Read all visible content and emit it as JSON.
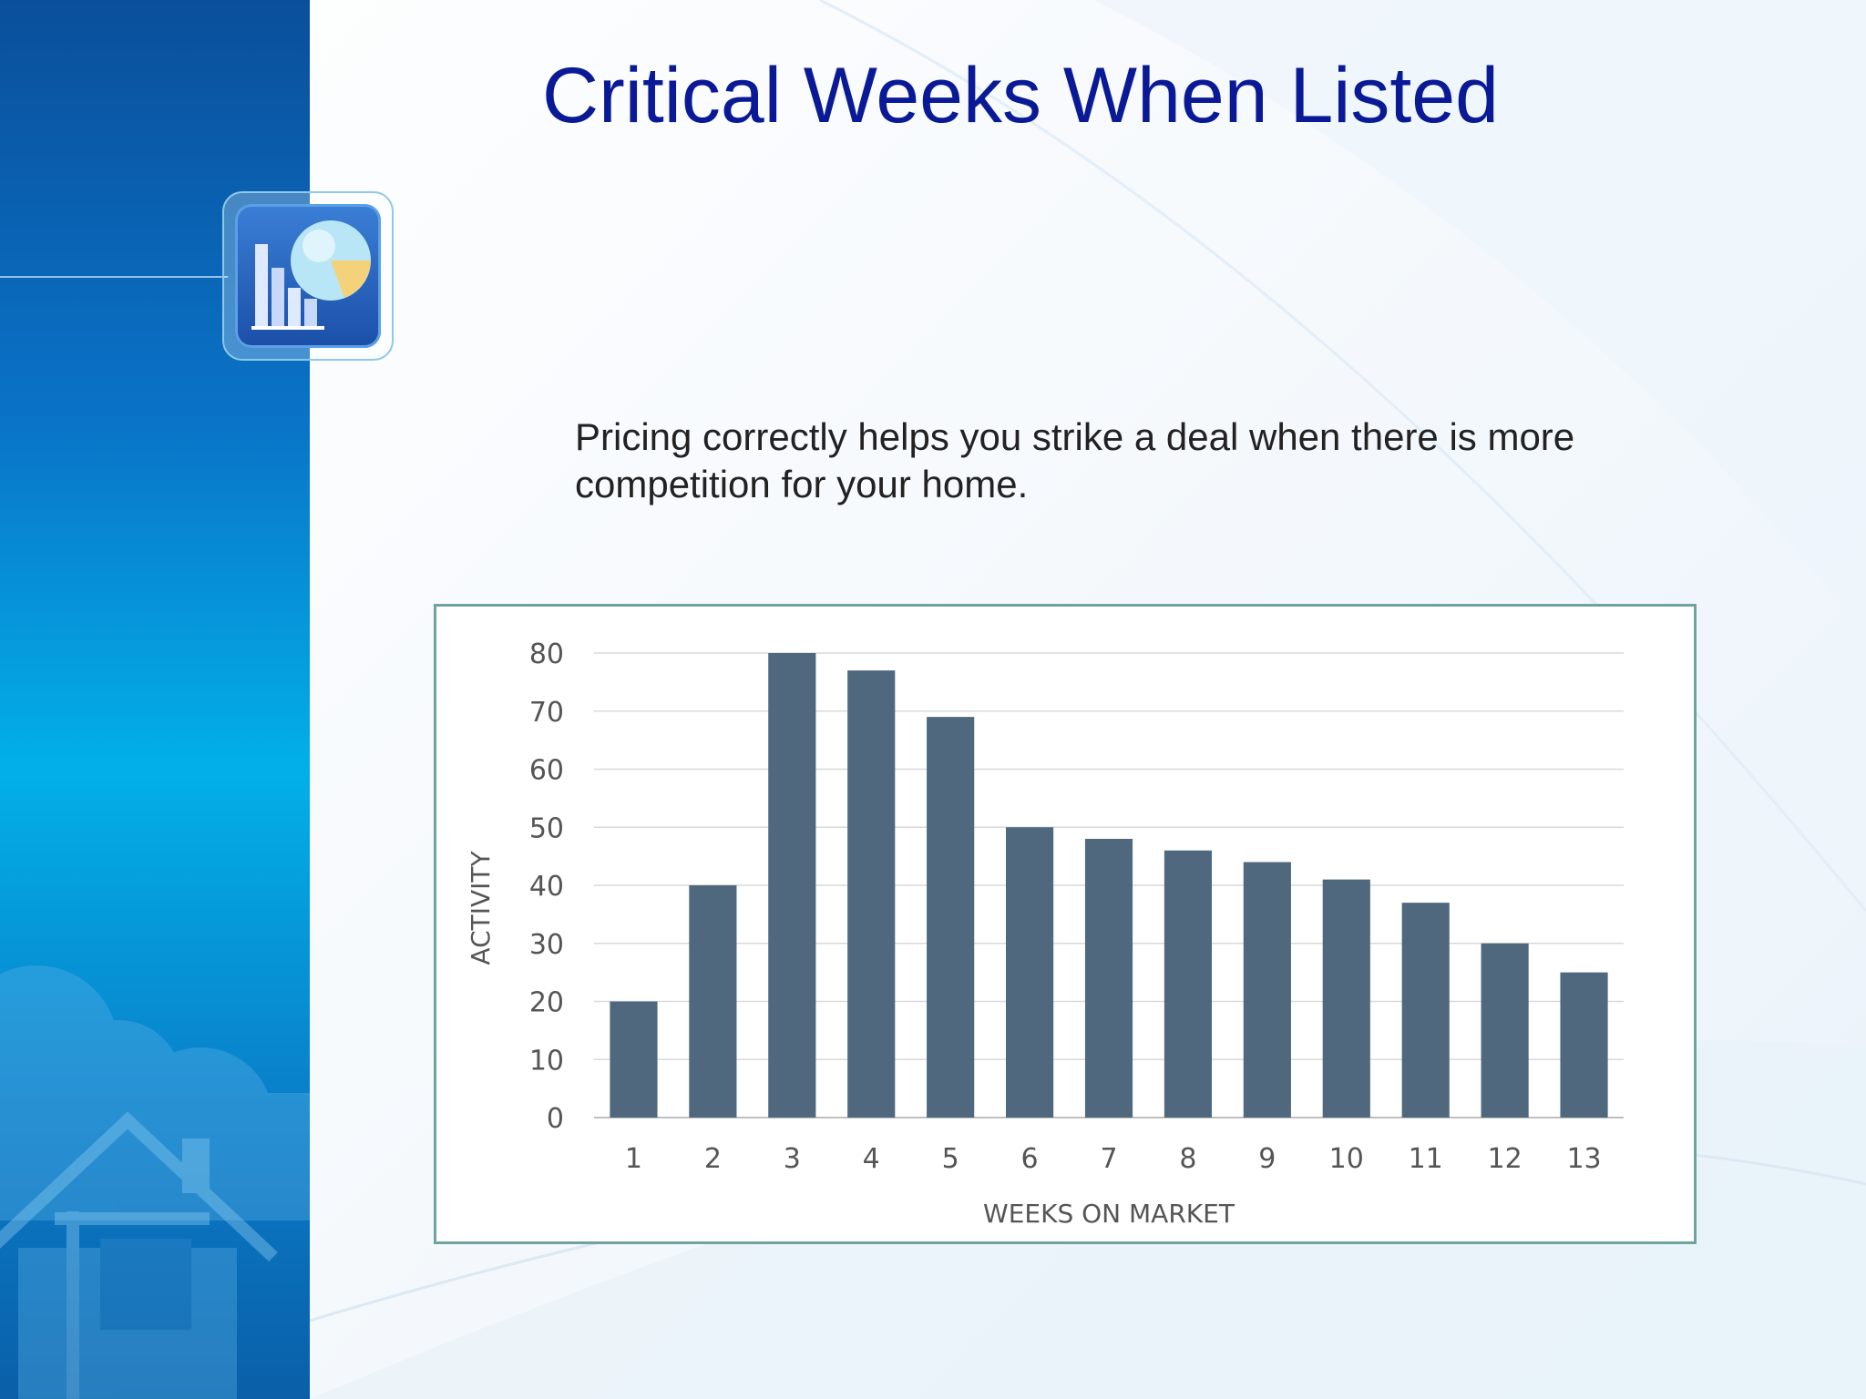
{
  "slide": {
    "title": "Critical Weeks When Listed",
    "subtitle": "Pricing correctly helps you strike a deal when there is more competition for your home."
  },
  "colors": {
    "title": "#0a1a96",
    "bar": "#4f687e",
    "chart_border": "#6fa3a0",
    "grid": "#d9d9d9",
    "axis_text": "#555555",
    "panel_top": "#0a4f9b",
    "panel_mid": "#02b0e8"
  },
  "icons": [
    "chart-app-icon",
    "house-icon",
    "cloud-icon"
  ],
  "chart_data": {
    "type": "bar",
    "title": "",
    "xlabel": "WEEKS ON MARKET",
    "ylabel": "ACTIVITY",
    "categories": [
      "1",
      "2",
      "3",
      "4",
      "5",
      "6",
      "7",
      "8",
      "9",
      "10",
      "11",
      "12",
      "13"
    ],
    "values": [
      20,
      40,
      80,
      77,
      69,
      50,
      48,
      46,
      44,
      41,
      37,
      30,
      25
    ],
    "ylim": [
      0,
      80
    ],
    "yticks": [
      0,
      10,
      20,
      30,
      40,
      50,
      60,
      70,
      80
    ],
    "grid": true,
    "legend": false
  }
}
